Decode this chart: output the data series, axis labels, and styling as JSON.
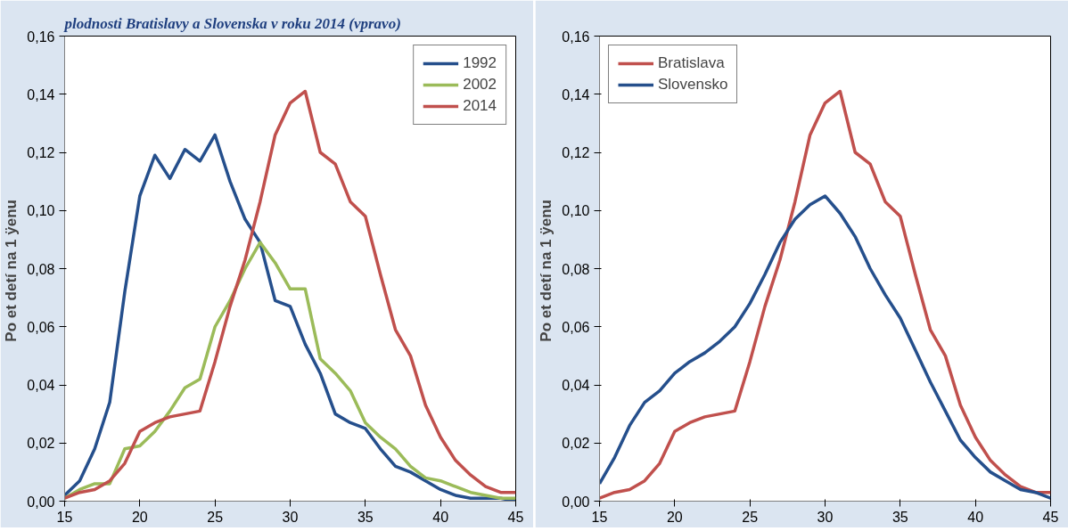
{
  "chart_data": [
    {
      "type": "line",
      "title": "plodnosti Bratislavy a Slovenska v roku 2014 (vpravo)",
      "ylabel": "Po  et detí na 1 ÿenu",
      "x": [
        15,
        16,
        17,
        18,
        19,
        20,
        21,
        22,
        23,
        24,
        25,
        26,
        27,
        28,
        29,
        30,
        31,
        32,
        33,
        34,
        35,
        36,
        37,
        38,
        39,
        40,
        41,
        42,
        43,
        44,
        45
      ],
      "series": [
        {
          "name": "1992",
          "color": "#254f8c",
          "values": [
            0.002,
            0.007,
            0.018,
            0.034,
            0.072,
            0.105,
            0.119,
            0.111,
            0.121,
            0.117,
            0.126,
            0.11,
            0.097,
            0.089,
            0.069,
            0.067,
            0.054,
            0.044,
            0.03,
            0.027,
            0.025,
            0.018,
            0.012,
            0.01,
            0.007,
            0.004,
            0.002,
            0.001,
            0.001,
            0.001,
            0.0
          ]
        },
        {
          "name": "2002",
          "color": "#9bbb59",
          "values": [
            0.001,
            0.004,
            0.006,
            0.006,
            0.018,
            0.019,
            0.024,
            0.031,
            0.039,
            0.042,
            0.06,
            0.069,
            0.08,
            0.089,
            0.082,
            0.073,
            0.073,
            0.049,
            0.044,
            0.038,
            0.027,
            0.022,
            0.018,
            0.012,
            0.008,
            0.007,
            0.005,
            0.003,
            0.002,
            0.001,
            0.001
          ]
        },
        {
          "name": "2014",
          "color": "#c0504d",
          "values": [
            0.001,
            0.003,
            0.004,
            0.007,
            0.013,
            0.024,
            0.027,
            0.029,
            0.03,
            0.031,
            0.048,
            0.067,
            0.083,
            0.103,
            0.126,
            0.137,
            0.141,
            0.12,
            0.116,
            0.103,
            0.098,
            0.078,
            0.059,
            0.05,
            0.033,
            0.022,
            0.014,
            0.009,
            0.005,
            0.003,
            0.003
          ]
        }
      ],
      "xlim": [
        15,
        45
      ],
      "xticks": [
        15,
        20,
        25,
        30,
        35,
        40,
        45
      ],
      "ylim": [
        0,
        0.16
      ],
      "yticks": [
        {
          "value": 0,
          "label": "0,00"
        },
        {
          "value": 0.02,
          "label": "0,02"
        },
        {
          "value": 0.04,
          "label": "0,04"
        },
        {
          "value": 0.06,
          "label": "0,06"
        },
        {
          "value": 0.08,
          "label": "0,08"
        },
        {
          "value": 0.1,
          "label": "0,10"
        },
        {
          "value": 0.12,
          "label": "0,12"
        },
        {
          "value": 0.14,
          "label": "0,14"
        },
        {
          "value": 0.16,
          "label": "0,16"
        }
      ],
      "legend": "top right",
      "grid": false,
      "marker": "none",
      "line_style": "solid"
    },
    {
      "type": "line",
      "ylabel": "Po  et detí na 1 ÿenu",
      "x": [
        15,
        16,
        17,
        18,
        19,
        20,
        21,
        22,
        23,
        24,
        25,
        26,
        27,
        28,
        29,
        30,
        31,
        32,
        33,
        34,
        35,
        36,
        37,
        38,
        39,
        40,
        41,
        42,
        43,
        44,
        45
      ],
      "series": [
        {
          "name": "Bratislava",
          "color": "#c0504d",
          "values": [
            0.001,
            0.003,
            0.004,
            0.007,
            0.013,
            0.024,
            0.027,
            0.029,
            0.03,
            0.031,
            0.048,
            0.067,
            0.083,
            0.103,
            0.126,
            0.137,
            0.141,
            0.12,
            0.116,
            0.103,
            0.098,
            0.078,
            0.059,
            0.05,
            0.033,
            0.022,
            0.014,
            0.009,
            0.005,
            0.003,
            0.003
          ]
        },
        {
          "name": "Slovensko",
          "color": "#254f8c",
          "values": [
            0.006,
            0.015,
            0.026,
            0.034,
            0.038,
            0.044,
            0.048,
            0.051,
            0.055,
            0.06,
            0.068,
            0.078,
            0.089,
            0.097,
            0.102,
            0.105,
            0.099,
            0.091,
            0.08,
            0.071,
            0.063,
            0.052,
            0.041,
            0.031,
            0.021,
            0.015,
            0.01,
            0.007,
            0.004,
            0.003,
            0.001
          ]
        }
      ],
      "xlim": [
        15,
        45
      ],
      "xticks": [
        15,
        20,
        25,
        30,
        35,
        40,
        45
      ],
      "ylim": [
        0,
        0.16
      ],
      "yticks": [
        {
          "value": 0,
          "label": "0,00"
        },
        {
          "value": 0.02,
          "label": "0,02"
        },
        {
          "value": 0.04,
          "label": "0,04"
        },
        {
          "value": 0.06,
          "label": "0,06"
        },
        {
          "value": 0.08,
          "label": "0,08"
        },
        {
          "value": 0.1,
          "label": "0,10"
        },
        {
          "value": 0.12,
          "label": "0,12"
        },
        {
          "value": 0.14,
          "label": "0,14"
        },
        {
          "value": 0.16,
          "label": "0,16"
        }
      ],
      "legend": "top left",
      "grid": false,
      "marker": "none",
      "line_style": "solid"
    }
  ]
}
